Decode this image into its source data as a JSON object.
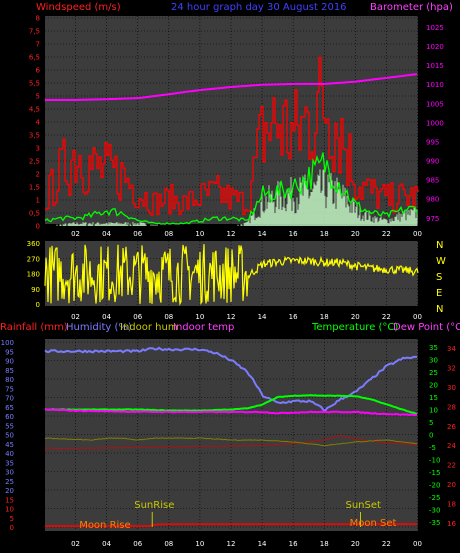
{
  "chart_data": [
    {
      "type": "line",
      "title": "24 hour graph day  30 August 2016",
      "left_axis_label": "Windspeed (m/s)",
      "right_axis_label": "Barometer (hpa)",
      "x_ticks": [
        "02",
        "04",
        "06",
        "08",
        "10",
        "12",
        "14",
        "16",
        "18",
        "20",
        "22",
        "00"
      ],
      "left_ticks": [
        "0",
        "0,5",
        "1",
        "1,5",
        "2",
        "2,5",
        "3",
        "3,5",
        "4",
        "4,5",
        "5",
        "5,5",
        "6",
        "6,5",
        "7",
        "7,5",
        "8"
      ],
      "right_ticks": [
        "975",
        "980",
        "985",
        "990",
        "995",
        "1000",
        "1005",
        "1010",
        "1015",
        "1020",
        "1025"
      ],
      "ylim_left": [
        0,
        8
      ],
      "ylim_right": [
        973.5,
        1028
      ],
      "grid": true,
      "series": [
        {
          "role": "wind gust",
          "color": "#ff0000",
          "x": [
            0,
            1,
            2,
            3,
            4,
            5,
            6,
            7,
            8,
            9,
            10,
            11,
            12,
            13,
            14,
            15,
            16,
            17,
            18,
            19,
            20,
            21,
            22,
            23,
            24
          ],
          "values": [
            1.3,
            2.6,
            3.6,
            2.8,
            2.6,
            2.4,
            1.6,
            1.1,
            1.3,
            1.1,
            1.4,
            1.6,
            1.3,
            1.1,
            4.6,
            4.9,
            4.3,
            5.2,
            6.0,
            4.6,
            2.1,
            1.6,
            1.3,
            1.4,
            1.4
          ]
        },
        {
          "role": "wind speed",
          "color": "#00ff00",
          "x": [
            0,
            1,
            2,
            3,
            4,
            5,
            6,
            7,
            8,
            9,
            10,
            11,
            12,
            13,
            14,
            15,
            16,
            17,
            18,
            19,
            20,
            21,
            22,
            23,
            24
          ],
          "values": [
            0.2,
            0.3,
            0.3,
            0.4,
            0.6,
            0.5,
            0.2,
            0.1,
            0.1,
            0.1,
            0.2,
            0.3,
            0.3,
            0.2,
            1.2,
            1.3,
            1.5,
            1.9,
            2.4,
            1.6,
            0.8,
            0.5,
            0.4,
            0.6,
            0.7
          ]
        },
        {
          "role": "wind average",
          "color": "#ccffcc",
          "x": [
            0,
            2,
            4,
            6,
            8,
            10,
            12,
            13,
            14,
            15,
            16,
            17,
            18,
            19,
            20,
            21,
            22,
            23,
            24
          ],
          "values": [
            0,
            0.1,
            0.1,
            0.1,
            0,
            0,
            0,
            0.1,
            0.9,
            1.1,
            1.2,
            1.3,
            1.4,
            1.2,
            0.6,
            0.3,
            0.2,
            0.4,
            0.5
          ]
        },
        {
          "role": "barometer",
          "axis": "right",
          "color": "#ff00ff",
          "x": [
            0,
            2,
            4,
            6,
            8,
            9,
            10,
            11,
            12,
            13,
            14,
            15,
            16,
            18,
            20,
            22,
            24
          ],
          "values": [
            1006,
            1006,
            1006.2,
            1006.5,
            1007.5,
            1008.1,
            1008.6,
            1009,
            1009.4,
            1009.7,
            1010,
            1010.1,
            1010.2,
            1010.2,
            1010.8,
            1011.8,
            1012.8
          ]
        }
      ]
    },
    {
      "type": "scatter",
      "left_ticks": [
        "0",
        "90",
        "180",
        "270",
        "360"
      ],
      "ylim": [
        0,
        360
      ],
      "compass": [
        "N",
        "W",
        "S",
        "E",
        "N"
      ],
      "series": [
        {
          "role": "wind direction",
          "color": "#ffff00",
          "x": [
            0,
            1,
            2,
            3,
            4,
            5,
            6,
            7,
            8,
            9,
            10,
            11,
            12,
            13,
            14,
            15,
            16,
            17,
            18,
            19,
            20,
            21,
            22,
            23,
            24
          ],
          "values": [
            150,
            220,
            60,
            310,
            120,
            280,
            330,
            200,
            310,
            250,
            180,
            300,
            260,
            160,
            235,
            250,
            255,
            255,
            245,
            245,
            225,
            210,
            205,
            200,
            190
          ]
        }
      ]
    },
    {
      "type": "line",
      "labels": {
        "rain": "Rainfall (mm)",
        "humidity": "Humidity (%)",
        "indoor_hum": "Indoor hum",
        "indoor_temp": "Indoor temp",
        "temperature": "Temperature (°C)",
        "dew_point": "Dew Point (°C)"
      },
      "x_ticks": [
        "02",
        "04",
        "06",
        "08",
        "10",
        "12",
        "14",
        "16",
        "18",
        "20",
        "22",
        "00"
      ],
      "left_ticks": [
        "0",
        "5",
        "10",
        "15",
        "20",
        "25",
        "30",
        "35",
        "40",
        "45",
        "50",
        "55",
        "60",
        "65",
        "70",
        "75",
        "80",
        "85",
        "90",
        "95",
        "100"
      ],
      "right_ticks": [
        "-35",
        "-30",
        "-25",
        "-20",
        "-15",
        "-10",
        "-5",
        "0",
        "5",
        "10",
        "15",
        "20",
        "25",
        "30",
        "35"
      ],
      "right_ticks2": [
        "16",
        "18",
        "20",
        "22",
        "24",
        "26",
        "28",
        "30",
        "32",
        "34"
      ],
      "annotations": [
        "SunRise",
        "SunSet",
        "Moon Rise",
        "Moon Set"
      ],
      "series": [
        {
          "role": "humidity",
          "color": "#7b7bff",
          "x": [
            0,
            2,
            4,
            6,
            7,
            8,
            10,
            11,
            12,
            13,
            13.5,
            14,
            15,
            16,
            17,
            17.5,
            18,
            19,
            20,
            21,
            22,
            23,
            24
          ],
          "values": [
            95,
            95,
            95,
            95,
            96.5,
            96,
            96,
            94,
            90,
            84,
            78,
            71,
            67,
            68,
            68,
            66,
            63,
            69,
            73,
            80,
            87,
            91,
            92
          ]
        },
        {
          "role": "temperature",
          "axis": "right",
          "color": "#00ff00",
          "x": [
            0,
            2,
            4,
            6,
            8,
            10,
            12,
            13,
            14,
            15,
            16,
            17,
            18,
            19,
            20,
            21,
            22,
            23,
            24
          ],
          "values": [
            10,
            10,
            10,
            10,
            9.6,
            9.6,
            10,
            10.5,
            12,
            15,
            15.5,
            15.7,
            15.5,
            15.5,
            15.3,
            14,
            12,
            10,
            8
          ]
        },
        {
          "role": "dew point",
          "axis": "right",
          "color": "#ff00ff",
          "x": [
            0,
            2,
            4,
            6,
            8,
            10,
            12,
            13,
            14,
            15,
            16,
            17,
            18,
            19,
            20,
            21,
            22,
            23,
            24
          ],
          "values": [
            10,
            9.5,
            9.3,
            9.1,
            9,
            9,
            9,
            9,
            9,
            8.5,
            8.8,
            9,
            9,
            9,
            9,
            8.5,
            8.2,
            8,
            7.8
          ]
        },
        {
          "role": "indoor hum",
          "color": "#808000",
          "x": [
            0,
            3,
            4,
            5,
            6,
            7,
            8,
            10,
            12,
            14,
            16,
            18,
            20,
            22,
            24
          ],
          "values": [
            48,
            47,
            48,
            48,
            47,
            48,
            48,
            48,
            47,
            47,
            46,
            44,
            46,
            47,
            45
          ]
        },
        {
          "role": "indoor temp",
          "color": "#b01010",
          "x": [
            0,
            2,
            4,
            6,
            8,
            10,
            12,
            13,
            14,
            16,
            18,
            19,
            20,
            22,
            24
          ],
          "values": [
            42.5,
            42.5,
            42.8,
            43,
            43.3,
            43.5,
            43.8,
            44,
            44.2,
            45,
            47,
            49.5,
            47.5,
            45.5,
            44.5
          ]
        },
        {
          "role": "rain",
          "color": "#ff0000",
          "x": [
            0,
            6,
            6.8,
            7,
            8,
            9,
            12,
            14,
            16,
            18,
            20,
            22,
            24
          ],
          "values": [
            0.5,
            0.5,
            0.5,
            1.3,
            1.5,
            1.5,
            1.5,
            1.5,
            1.5,
            1.5,
            1.5,
            1.6,
            1.6
          ]
        }
      ]
    }
  ]
}
